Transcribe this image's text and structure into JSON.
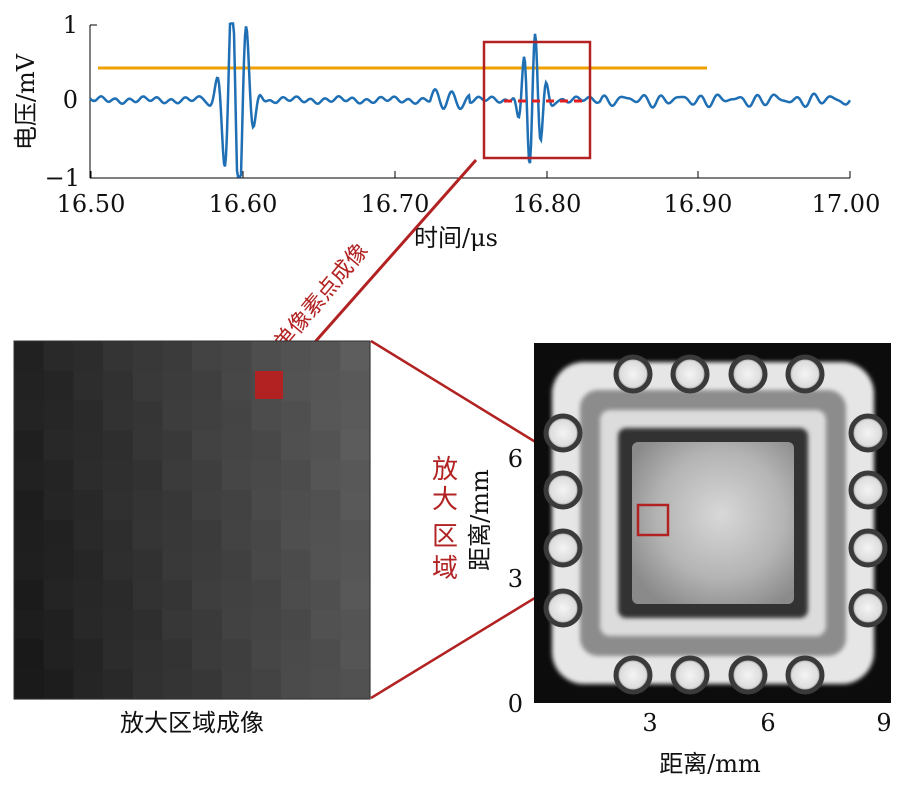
{
  "waveform": {
    "ylabel": "电压/mV",
    "xlabel": "时间/μs",
    "x_ticks": [
      "16.50",
      "16.60",
      "16.70",
      "16.80",
      "16.90",
      "17.00"
    ],
    "y_ticks": [
      "1",
      "0",
      "−1"
    ],
    "threshold_color": "#f0a000",
    "signal_color": "#1f6fb5",
    "gate_color": "#e02020"
  },
  "arrow_label": "单像素点成像",
  "zoom_caption": "放大区域成像",
  "zoom_region_label": [
    "放",
    "大",
    "区",
    "域"
  ],
  "scan_image": {
    "xlabel": "距离/mm",
    "ylabel": "距离/mm",
    "x_ticks": [
      "3",
      "6",
      "9"
    ],
    "y_ticks": [
      "6",
      "3",
      "0"
    ]
  },
  "annotation_color": "#b22222"
}
